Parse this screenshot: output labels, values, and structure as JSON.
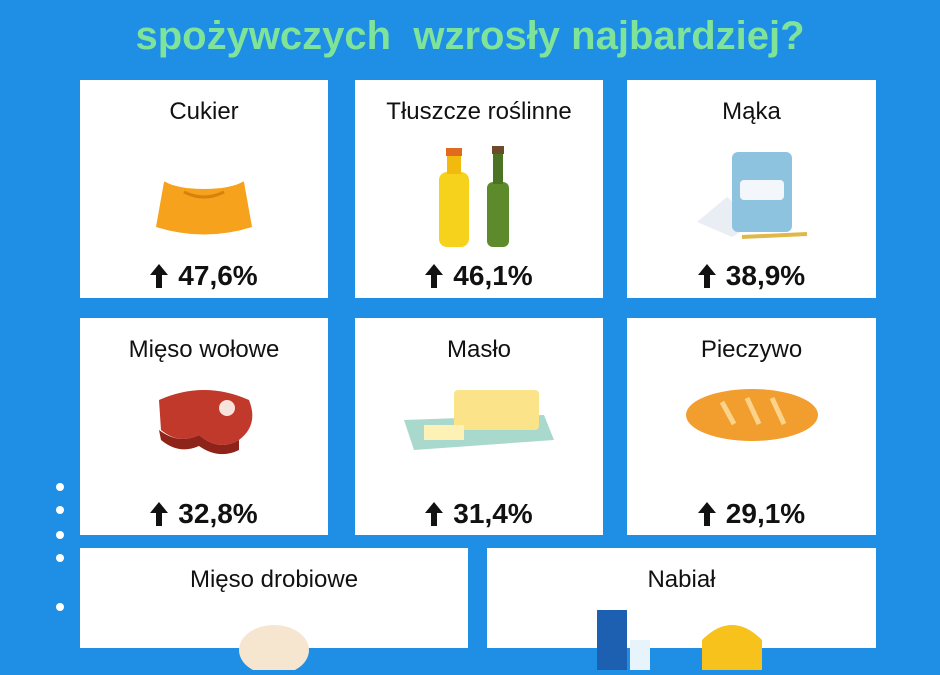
{
  "header": {
    "title": "spożywczych  wzrosły najbardziej?"
  },
  "cards": [
    {
      "name": "Cukier",
      "change": "47,6%"
    },
    {
      "name": "Tłuszcze roślinne",
      "change": "46,1%"
    },
    {
      "name": "Mąka",
      "change": "38,9%"
    },
    {
      "name": "Mięso wołowe",
      "change": "32,8%"
    },
    {
      "name": "Masło",
      "change": "31,4%"
    },
    {
      "name": "Pieczywo",
      "change": "29,1%"
    },
    {
      "name": "Mięso drobiowe"
    },
    {
      "name": "Nabiał"
    }
  ]
}
